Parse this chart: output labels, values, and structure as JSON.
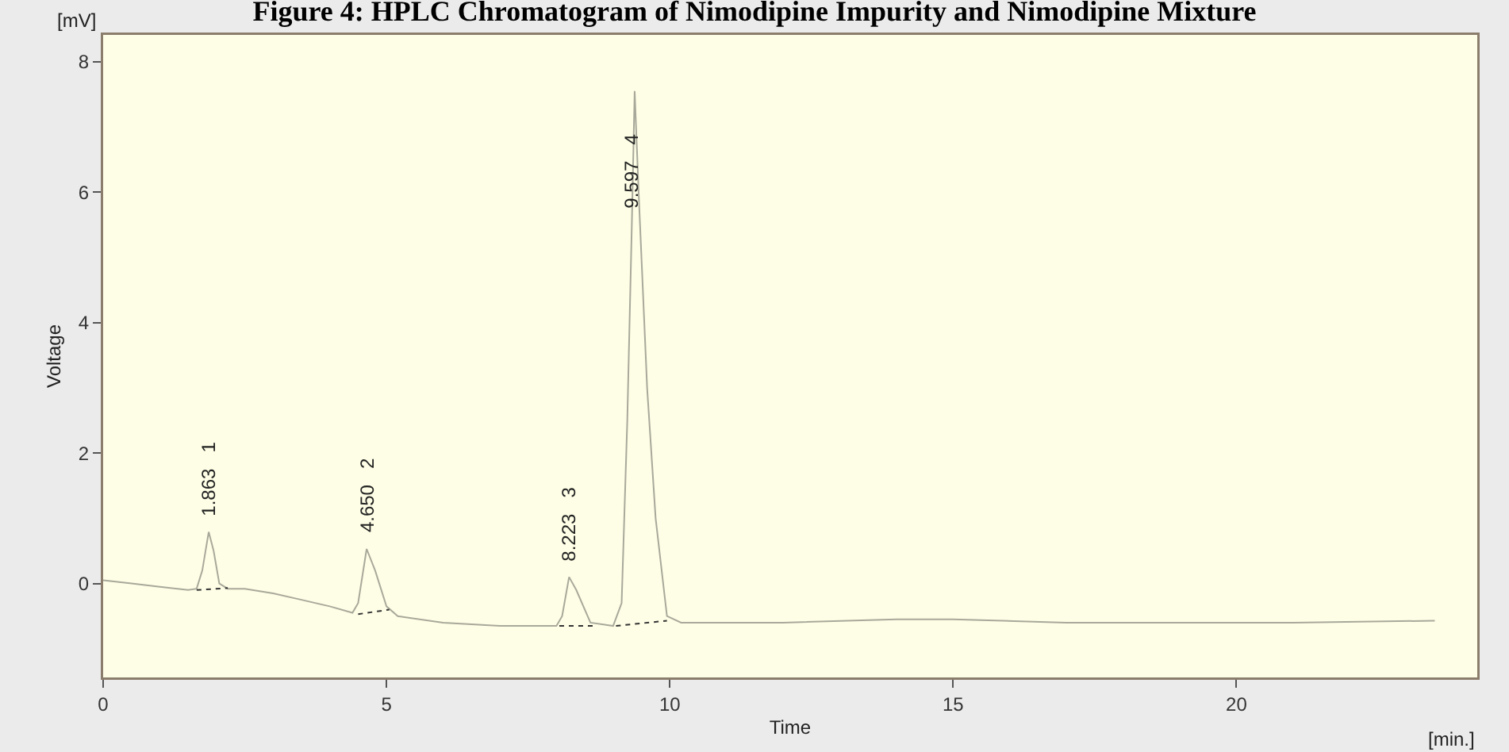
{
  "chart_data": {
    "type": "line",
    "title": "Figure 4: HPLC Chromatogram of Nimodipine Impurity and Nimodipine Mixture",
    "xlabel": "Time",
    "ylabel": "Voltage",
    "series": [
      {
        "color": "#a9a99b",
        "line_style": "solid",
        "x": [
          0,
          0.5,
          1.0,
          1.5,
          1.65,
          1.75,
          1.863,
          1.95,
          2.05,
          2.2,
          2.5,
          3.0,
          3.5,
          4.0,
          4.4,
          4.5,
          4.65,
          4.8,
          5.0,
          5.2,
          6.0,
          7.0,
          8.0,
          8.1,
          8.223,
          8.35,
          8.6,
          9.0,
          9.15,
          9.25,
          9.33,
          9.38,
          9.45,
          9.6,
          9.75,
          9.95,
          10.2,
          12,
          14,
          15,
          17,
          19,
          21,
          23.5
        ],
        "values": [
          0.05,
          0.0,
          -0.05,
          -0.1,
          -0.08,
          0.2,
          0.79,
          0.5,
          0.0,
          -0.08,
          -0.08,
          -0.15,
          -0.25,
          -0.35,
          -0.45,
          -0.3,
          0.53,
          0.2,
          -0.35,
          -0.5,
          -0.6,
          -0.65,
          -0.65,
          -0.5,
          0.1,
          -0.1,
          -0.6,
          -0.65,
          -0.3,
          2.5,
          5.5,
          7.55,
          6.0,
          3.0,
          1.0,
          -0.5,
          -0.6,
          -0.6,
          -0.55,
          -0.55,
          -0.6,
          -0.6,
          -0.6,
          -0.57
        ]
      },
      {
        "color": "#333333",
        "line_style": "dotted",
        "x": [
          1.65,
          2.2
        ],
        "values": [
          -0.1,
          -0.07
        ]
      },
      {
        "color": "#333333",
        "line_style": "dotted",
        "x": [
          4.5,
          5.05
        ],
        "values": [
          -0.47,
          -0.4
        ]
      },
      {
        "color": "#333333",
        "line_style": "dotted",
        "x": [
          8.05,
          8.7
        ],
        "values": [
          -0.65,
          -0.65
        ]
      },
      {
        "color": "#333333",
        "line_style": "dotted",
        "x": [
          9.05,
          9.95
        ],
        "values": [
          -0.65,
          -0.57
        ]
      }
    ],
    "xlim": [
      0,
      24.25
    ],
    "xticks": [
      0,
      5,
      10,
      15,
      20
    ],
    "ylim": [
      -1.44,
      8.41
    ],
    "yticks": [
      0,
      2,
      4,
      6,
      8
    ],
    "grid": false,
    "annotations": [
      {
        "text": "1.863 1",
        "x": 1.863,
        "y": 0.79
      },
      {
        "text": "4.650 2",
        "x": 4.65,
        "y": 0.53
      },
      {
        "text": "8.223 3",
        "x": 8.223,
        "y": 0.1
      },
      {
        "text": "9.597 4",
        "x": 9.33,
        "y": 5.5
      },
      "[mV]",
      "[min.]"
    ]
  }
}
